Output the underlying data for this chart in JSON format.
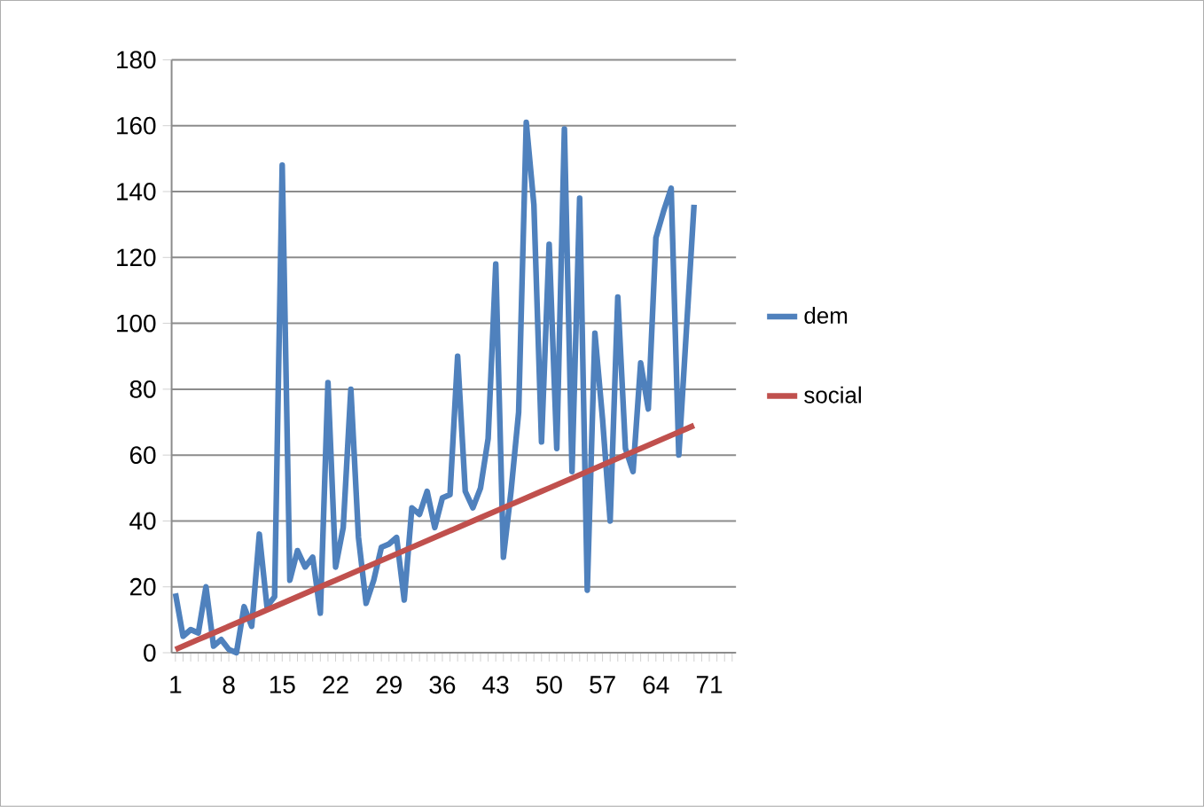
{
  "chart_data": {
    "type": "line",
    "categories": [
      "1",
      null,
      null,
      null,
      null,
      null,
      null,
      "8",
      null,
      null,
      null,
      null,
      null,
      null,
      "15",
      null,
      null,
      null,
      null,
      null,
      null,
      "22",
      null,
      null,
      null,
      null,
      null,
      null,
      "29",
      null,
      null,
      null,
      null,
      null,
      null,
      "36",
      null,
      null,
      null,
      null,
      null,
      null,
      "43",
      null,
      null,
      null,
      null,
      null,
      null,
      "50",
      null,
      null,
      null,
      null,
      null,
      null,
      "57",
      null,
      null,
      null,
      null,
      null,
      null,
      "64",
      null,
      null,
      null,
      null,
      null,
      null,
      "71",
      null,
      null,
      null
    ],
    "series": [
      {
        "name": "dem",
        "color": "#4f81bd",
        "values": [
          18,
          5,
          7,
          6,
          20,
          2,
          4,
          1,
          0,
          14,
          8,
          36,
          14,
          17,
          148,
          22,
          31,
          26,
          29,
          12,
          82,
          26,
          38,
          80,
          35,
          15,
          22,
          32,
          33,
          35,
          16,
          44,
          42,
          49,
          38,
          47,
          48,
          90,
          49,
          44,
          50,
          65,
          118,
          29,
          49,
          73,
          161,
          136,
          64,
          124,
          62,
          159,
          55,
          138,
          19,
          97,
          71,
          40,
          108,
          62,
          55,
          88,
          74,
          126,
          134,
          141,
          60,
          98,
          136,
          null,
          null,
          null,
          null,
          null
        ]
      },
      {
        "name": "social",
        "color": "#c0504d",
        "values": [
          1,
          2,
          3,
          4,
          5,
          6,
          7,
          8,
          9,
          10,
          11,
          12,
          13,
          14,
          15,
          16,
          17,
          18,
          19,
          20,
          21,
          22,
          23,
          24,
          25,
          26,
          27,
          28,
          29,
          30,
          31,
          32,
          33,
          34,
          35,
          36,
          37,
          38,
          39,
          40,
          41,
          42,
          43,
          44,
          45,
          46,
          47,
          48,
          49,
          50,
          51,
          52,
          53,
          54,
          55,
          56,
          57,
          58,
          59,
          60,
          61,
          62,
          63,
          64,
          65,
          66,
          67,
          68,
          69,
          null,
          null,
          null,
          null,
          null
        ]
      }
    ],
    "ylim": [
      0,
      180
    ],
    "yticks": [
      0,
      20,
      40,
      60,
      80,
      100,
      120,
      140,
      160,
      180
    ],
    "grid": "y",
    "legend": "right",
    "marker": "none",
    "line_style": "solid"
  }
}
